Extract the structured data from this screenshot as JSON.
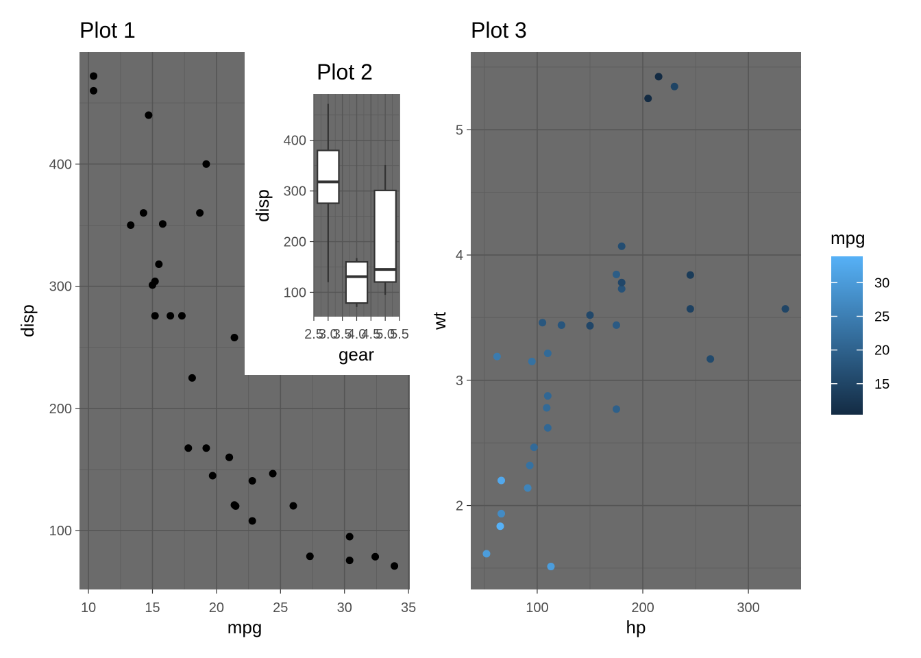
{
  "chart_data": [
    {
      "type": "scatter",
      "title": "Plot 1",
      "xlabel": "mpg",
      "ylabel": "disp",
      "xlim": [
        9.3,
        35.1
      ],
      "ylim": [
        51.9,
        491.6
      ],
      "xticks": [
        10,
        15,
        20,
        25,
        30,
        35
      ],
      "yticks": [
        100,
        200,
        300,
        400
      ],
      "point_color": "#000000",
      "panel_bg": "#6b6b6b",
      "grid": true,
      "x": [
        21.0,
        21.0,
        22.8,
        21.4,
        18.7,
        18.1,
        14.3,
        24.4,
        22.8,
        19.2,
        17.8,
        16.4,
        17.3,
        15.2,
        10.4,
        10.4,
        14.7,
        32.4,
        30.4,
        33.9,
        21.5,
        15.5,
        15.2,
        13.3,
        19.2,
        27.3,
        26.0,
        30.4,
        15.8,
        19.7,
        15.0,
        21.4
      ],
      "y": [
        160,
        160,
        108,
        258,
        360,
        225,
        360,
        146.7,
        140.8,
        167.6,
        167.6,
        275.8,
        275.8,
        275.8,
        472,
        460,
        440,
        78.7,
        75.7,
        71.1,
        120.1,
        318,
        304,
        350,
        400,
        79,
        120.3,
        95.1,
        351,
        145,
        301,
        121
      ]
    },
    {
      "type": "box",
      "title": "Plot 2",
      "xlabel": "gear",
      "ylabel": "disp",
      "inset": true,
      "xlim": [
        2.5,
        5.5
      ],
      "ylim": [
        51.9,
        491.6
      ],
      "xticks": [
        "2.5",
        "3.0",
        "3.5",
        "4.0",
        "4.5",
        "5.0",
        "5.5"
      ],
      "xtick_values": [
        2.5,
        3.0,
        3.5,
        4.0,
        4.5,
        5.0,
        5.5
      ],
      "yticks": [
        100,
        200,
        300,
        400
      ],
      "panel_bg": "#6b6b6b",
      "box_fill": "#ffffff",
      "boxes": [
        {
          "x": 3,
          "min": 120.1,
          "q1": 275.8,
          "median": 318,
          "q3": 380,
          "max": 472
        },
        {
          "x": 4,
          "min": 71.1,
          "q1": 78.8,
          "median": 130.9,
          "q3": 160,
          "max": 167.6
        },
        {
          "x": 5,
          "min": 95.1,
          "q1": 120.3,
          "median": 145,
          "q3": 301,
          "max": 351
        }
      ]
    },
    {
      "type": "scatter",
      "title": "Plot 3",
      "xlabel": "hp",
      "ylabel": "wt",
      "xlim": [
        37.1,
        349.9
      ],
      "ylim": [
        1.33,
        5.62
      ],
      "xticks": [
        100,
        200,
        300
      ],
      "yticks": [
        2,
        3,
        4,
        5
      ],
      "panel_bg": "#6b6b6b",
      "grid": true,
      "color_var": "mpg",
      "color_low": "#132b43",
      "color_high": "#56b1f7",
      "color_range": [
        10.4,
        33.9
      ],
      "legend": {
        "title": "mpg",
        "ticks": [
          15,
          20,
          25,
          30
        ],
        "position": "right"
      },
      "x": [
        110,
        110,
        93,
        110,
        175,
        105,
        245,
        62,
        95,
        123,
        123,
        180,
        180,
        180,
        205,
        215,
        230,
        66,
        52,
        65,
        97,
        150,
        150,
        245,
        175,
        66,
        91,
        113,
        264,
        175,
        335,
        109
      ],
      "y": [
        2.62,
        2.875,
        2.32,
        3.215,
        3.44,
        3.46,
        3.57,
        3.19,
        3.15,
        3.44,
        3.44,
        4.07,
        3.73,
        3.78,
        5.25,
        5.424,
        5.345,
        2.2,
        1.615,
        1.835,
        2.465,
        3.52,
        3.435,
        3.84,
        3.845,
        1.935,
        2.14,
        1.513,
        3.17,
        2.77,
        3.57,
        2.78
      ],
      "mpg": [
        21.0,
        21.0,
        22.8,
        21.4,
        18.7,
        18.1,
        14.3,
        24.4,
        22.8,
        19.2,
        17.8,
        16.4,
        17.3,
        15.2,
        10.4,
        10.4,
        14.7,
        32.4,
        30.4,
        33.9,
        21.5,
        15.5,
        15.2,
        13.3,
        19.2,
        27.3,
        26.0,
        30.4,
        15.8,
        19.7,
        15.0,
        21.4
      ]
    }
  ]
}
